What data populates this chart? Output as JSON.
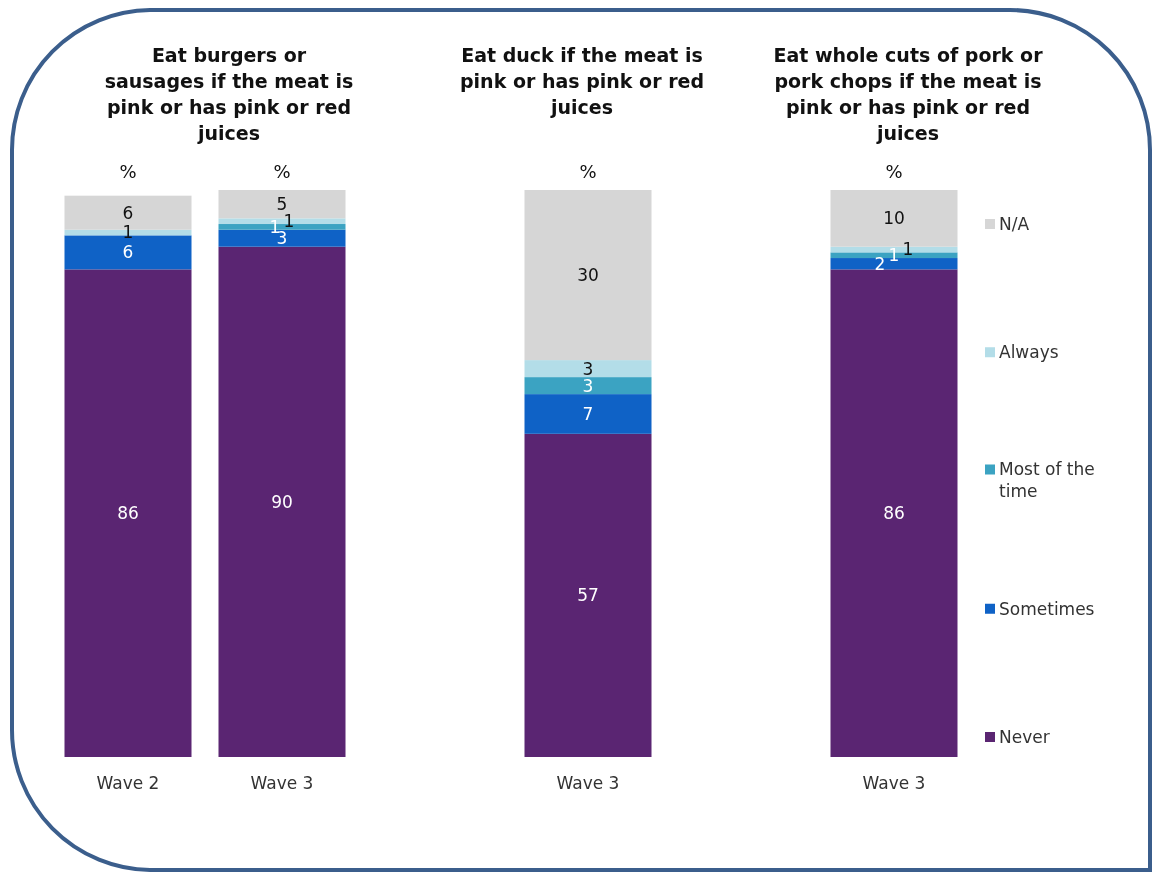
{
  "chart_data": [
    {
      "type": "bar",
      "stacked": true,
      "title": "Eat burgers or sausages if the meat is pink or has pink or red juices",
      "categories": [
        "Wave 2",
        "Wave 3"
      ],
      "ylim": [
        0,
        100
      ],
      "tick_labels": "x",
      "data_labels": true,
      "legend": false,
      "annotations": [
        "%",
        "%"
      ],
      "series": [
        {
          "color": "#5a2572",
          "values": [
            86,
            90
          ]
        },
        {
          "color": "#0f62c6",
          "values": [
            6,
            3
          ]
        },
        {
          "color": "#3ba3c2",
          "values": [
            null,
            1
          ]
        },
        {
          "color": "#b3dde8",
          "values": [
            1,
            1
          ]
        },
        {
          "color": "#d6d6d6",
          "values": [
            6,
            5
          ]
        }
      ]
    },
    {
      "type": "bar",
      "stacked": true,
      "title": "Eat duck if the meat is pink or has pink or red juices",
      "categories": [
        "Wave 3"
      ],
      "ylim": [
        0,
        100
      ],
      "tick_labels": "x",
      "data_labels": true,
      "legend": false,
      "annotations": [
        "%"
      ],
      "series": [
        {
          "color": "#5a2572",
          "values": [
            57
          ]
        },
        {
          "color": "#0f62c6",
          "values": [
            7
          ]
        },
        {
          "color": "#3ba3c2",
          "values": [
            3
          ]
        },
        {
          "color": "#b3dde8",
          "values": [
            3
          ]
        },
        {
          "color": "#d6d6d6",
          "values": [
            30
          ]
        }
      ]
    },
    {
      "type": "bar",
      "stacked": true,
      "title": "Eat whole cuts of pork or pork chops if the meat is pink or has pink or red juices",
      "categories": [
        "Wave 3"
      ],
      "ylim": [
        0,
        100
      ],
      "tick_labels": "x",
      "data_labels": true,
      "legend": "right",
      "annotations": [
        "%"
      ],
      "series": [
        {
          "name": "Never",
          "color": "#5a2572",
          "values": [
            86
          ]
        },
        {
          "name": "Sometimes",
          "color": "#0f62c6",
          "values": [
            2
          ]
        },
        {
          "name": "Most of the time",
          "color": "#3ba3c2",
          "values": [
            1
          ]
        },
        {
          "name": "Always",
          "color": "#b3dde8",
          "values": [
            1
          ]
        },
        {
          "name": "N/A",
          "color": "#d6d6d6",
          "values": [
            10
          ]
        }
      ]
    }
  ]
}
